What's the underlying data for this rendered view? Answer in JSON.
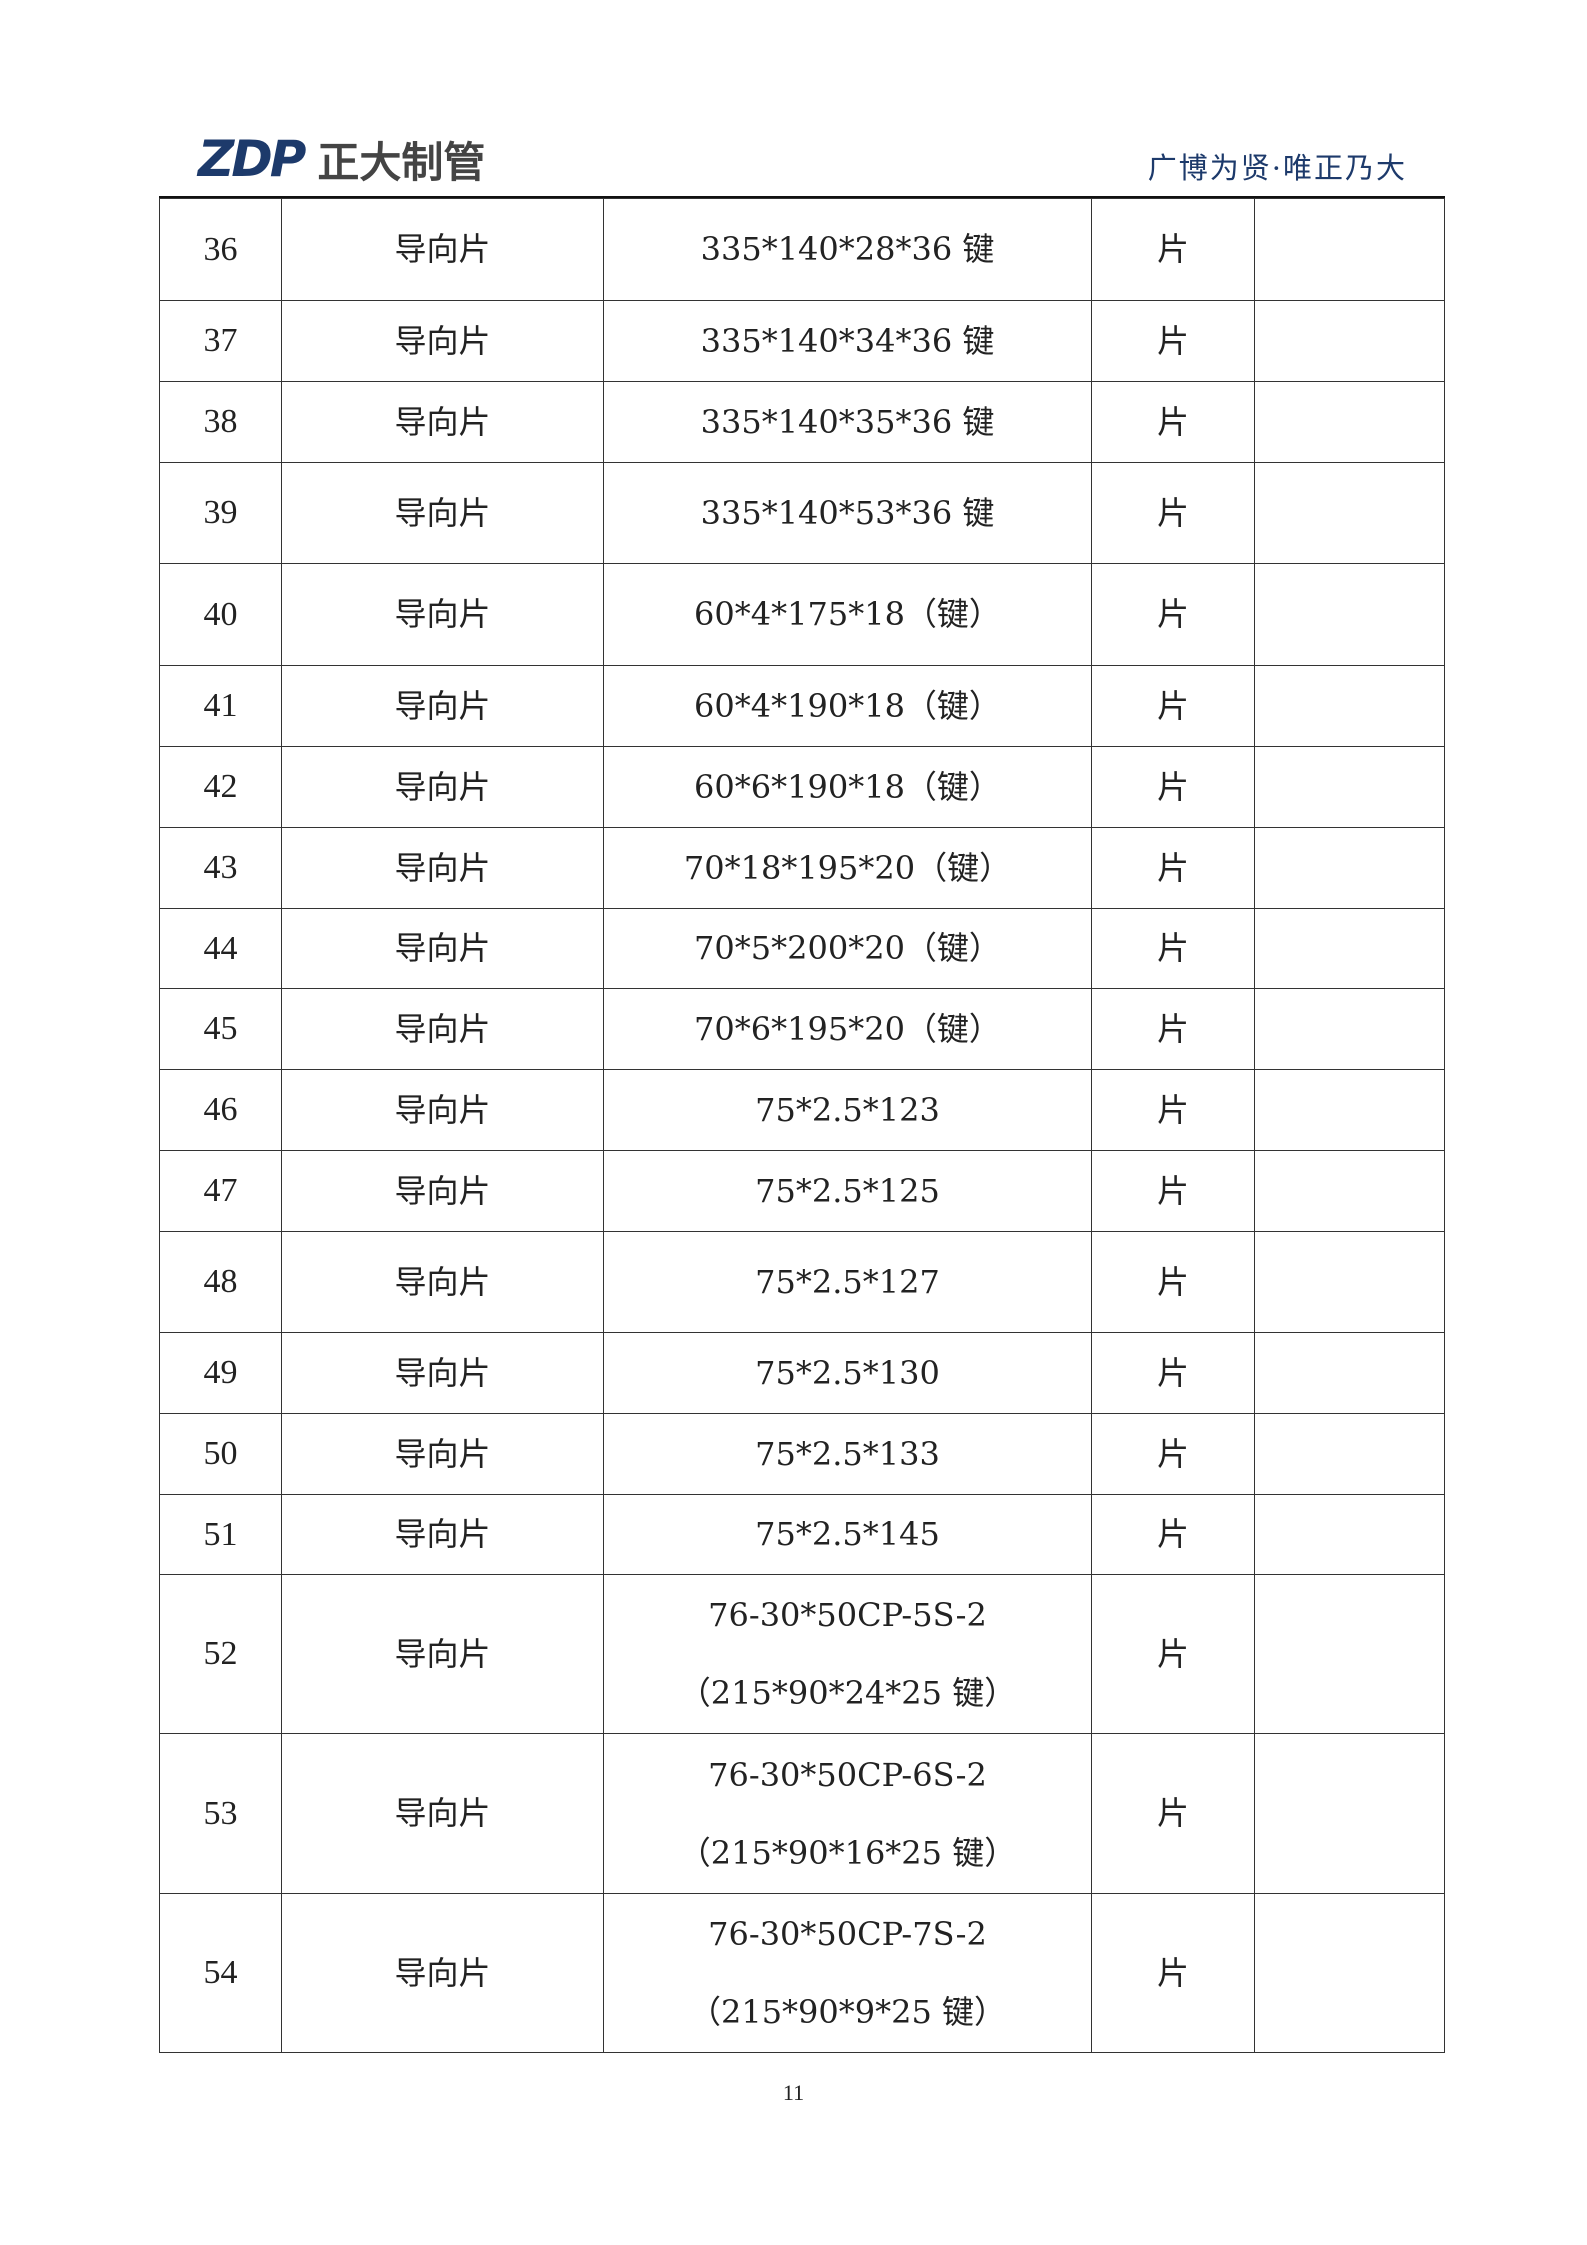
{
  "header": {
    "logo_mark": "ZDP",
    "logo_text": "正大制管",
    "tagline": "广博为贤·唯正乃大",
    "brand_color": "#1d3a6b"
  },
  "table": {
    "rows": [
      {
        "no": "36",
        "name": "导向片",
        "spec": [
          "335*140*28*36 键"
        ],
        "unit": "片",
        "note": ""
      },
      {
        "no": "37",
        "name": "导向片",
        "spec": [
          "335*140*34*36 键"
        ],
        "unit": "片",
        "note": ""
      },
      {
        "no": "38",
        "name": "导向片",
        "spec": [
          "335*140*35*36 键"
        ],
        "unit": "片",
        "note": ""
      },
      {
        "no": "39",
        "name": "导向片",
        "spec": [
          "335*140*53*36 键"
        ],
        "unit": "片",
        "note": ""
      },
      {
        "no": "40",
        "name": "导向片",
        "spec": [
          "60*4*175*18（键）"
        ],
        "unit": "片",
        "note": ""
      },
      {
        "no": "41",
        "name": "导向片",
        "spec": [
          "60*4*190*18（键）"
        ],
        "unit": "片",
        "note": ""
      },
      {
        "no": "42",
        "name": "导向片",
        "spec": [
          "60*6*190*18（键）"
        ],
        "unit": "片",
        "note": ""
      },
      {
        "no": "43",
        "name": "导向片",
        "spec": [
          "70*18*195*20（键）"
        ],
        "unit": "片",
        "note": ""
      },
      {
        "no": "44",
        "name": "导向片",
        "spec": [
          "70*5*200*20（键）"
        ],
        "unit": "片",
        "note": ""
      },
      {
        "no": "45",
        "name": "导向片",
        "spec": [
          "70*6*195*20（键）"
        ],
        "unit": "片",
        "note": ""
      },
      {
        "no": "46",
        "name": "导向片",
        "spec": [
          "75*2.5*123"
        ],
        "unit": "片",
        "note": ""
      },
      {
        "no": "47",
        "name": "导向片",
        "spec": [
          "75*2.5*125"
        ],
        "unit": "片",
        "note": ""
      },
      {
        "no": "48",
        "name": "导向片",
        "spec": [
          "75*2.5*127"
        ],
        "unit": "片",
        "note": ""
      },
      {
        "no": "49",
        "name": "导向片",
        "spec": [
          "75*2.5*130"
        ],
        "unit": "片",
        "note": ""
      },
      {
        "no": "50",
        "name": "导向片",
        "spec": [
          "75*2.5*133"
        ],
        "unit": "片",
        "note": ""
      },
      {
        "no": "51",
        "name": "导向片",
        "spec": [
          "75*2.5*145"
        ],
        "unit": "片",
        "note": ""
      },
      {
        "no": "52",
        "name": "导向片",
        "spec": [
          "76-30*50CP-5S-2",
          "（215*90*24*25 键）"
        ],
        "unit": "片",
        "note": ""
      },
      {
        "no": "53",
        "name": "导向片",
        "spec": [
          "76-30*50CP-6S-2",
          "（215*90*16*25 键）"
        ],
        "unit": "片",
        "note": ""
      },
      {
        "no": "54",
        "name": "导向片",
        "spec": [
          "76-30*50CP-7S-2",
          "（215*90*9*25 键）"
        ],
        "unit": "片",
        "note": ""
      }
    ]
  },
  "footer": {
    "page_number": "11"
  }
}
